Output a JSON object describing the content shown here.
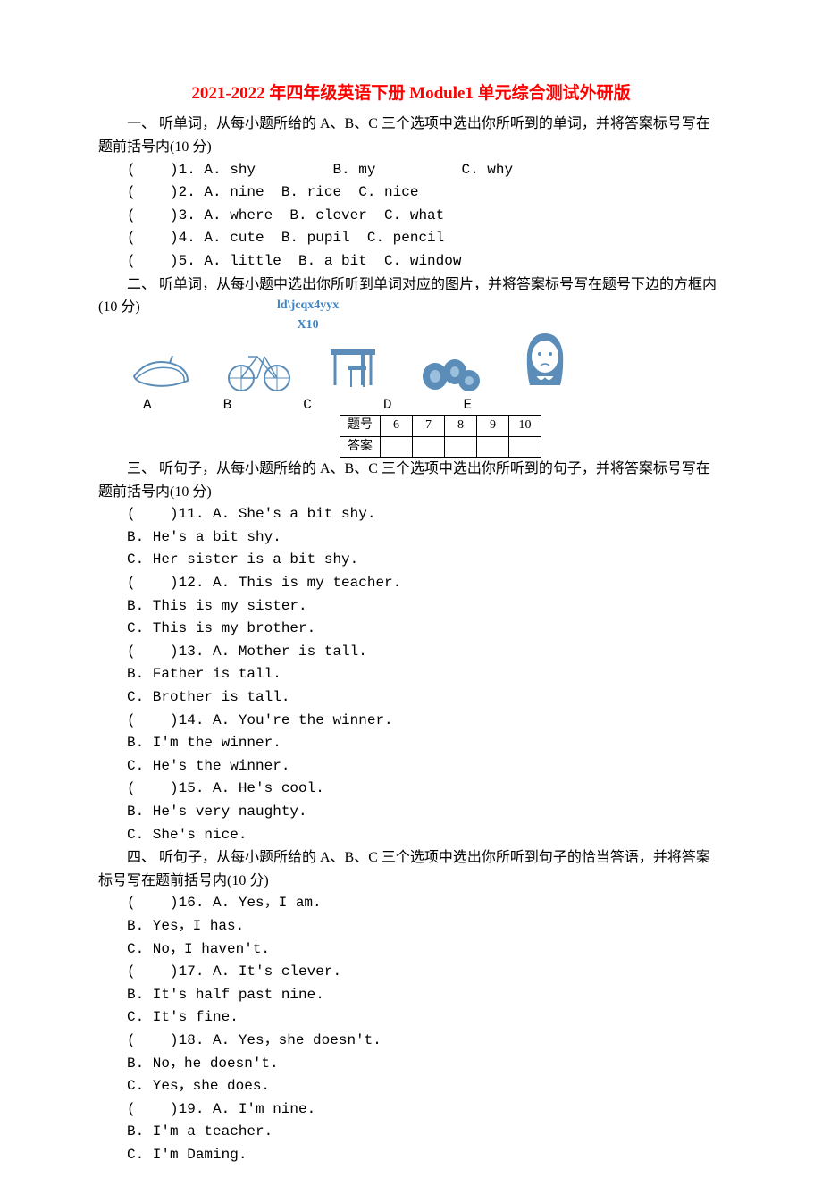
{
  "title": "2021-2022 年四年级英语下册 Module1 单元综合测试外研版",
  "section1": {
    "intro": "一、 听单词，从每小题所给的 A、B、C 三个选项中选出你所听到的单词，并将答案标号写在题前括号内(10 分)",
    "questions": [
      {
        "num": "1",
        "a": "shy",
        "b": "my",
        "c": "why"
      },
      {
        "num": "2",
        "a": "nine",
        "b": "rice",
        "c": "nice"
      },
      {
        "num": "3",
        "a": "where",
        "b": "clever",
        "c": "what"
      },
      {
        "num": "4",
        "a": "cute",
        "b": "pupil",
        "c": "pencil"
      },
      {
        "num": "5",
        "a": "little",
        "b": "a bit",
        "c": "window"
      }
    ]
  },
  "section2": {
    "intro": "二、 听单词，从每小题中选出你所听到单词对应的图片，并将答案标号写在题号下边的方框内(10 分)",
    "watermark_line1": "ld\\jcqx4yyx",
    "watermark_line2": "X10",
    "labels": [
      "A",
      "B",
      "C",
      "D",
      "E"
    ],
    "table_header": [
      "题号",
      "6",
      "7",
      "8",
      "9",
      "10"
    ],
    "table_row": [
      "答案",
      "",
      "",
      "",
      "",
      ""
    ]
  },
  "section3": {
    "intro": "三、 听句子，从每小题所给的 A、B、C 三个选项中选出你所听到的句子，并将答案标号写在题前括号内(10 分)",
    "questions": [
      {
        "num": "11",
        "a": "She's a bit shy.",
        "b": "He's a bit shy.",
        "c": "Her sister is a bit shy."
      },
      {
        "num": "12",
        "a": "This is my teacher.",
        "b": "This is my sister.",
        "c": "This is my brother."
      },
      {
        "num": "13",
        "a": "Mother is tall.",
        "b": "Father is tall.",
        "c": "Brother is tall."
      },
      {
        "num": "14",
        "a": "You're the winner.",
        "b": "I'm the winner.",
        "c": "He's the winner."
      },
      {
        "num": "15",
        "a": "He's cool.",
        "b": "He's very naughty.",
        "c": "She's nice."
      }
    ]
  },
  "section4": {
    "intro": "四、 听句子，从每小题所给的 A、B、C 三个选项中选出你所听到句子的恰当答语，并将答案标号写在题前括号内(10 分)",
    "questions": [
      {
        "num": "16",
        "a": "Yes，I am.",
        "b": "Yes，I has.",
        "c": "No，I haven't."
      },
      {
        "num": "17",
        "a": "It's clever.",
        "b": "It's half past nine.",
        "c": "It's fine."
      },
      {
        "num": "18",
        "a": "Yes，she doesn't.",
        "b": "No，he doesn't.",
        "c": "Yes，she does."
      },
      {
        "num": "19",
        "a": "I'm nine.",
        "b": "I'm a teacher.",
        "c": "I'm Daming."
      }
    ]
  },
  "colors": {
    "title": "#ff0000",
    "icon": "#5b8db8",
    "watermark": "#4285c4",
    "text": "#000000",
    "background": "#ffffff"
  }
}
